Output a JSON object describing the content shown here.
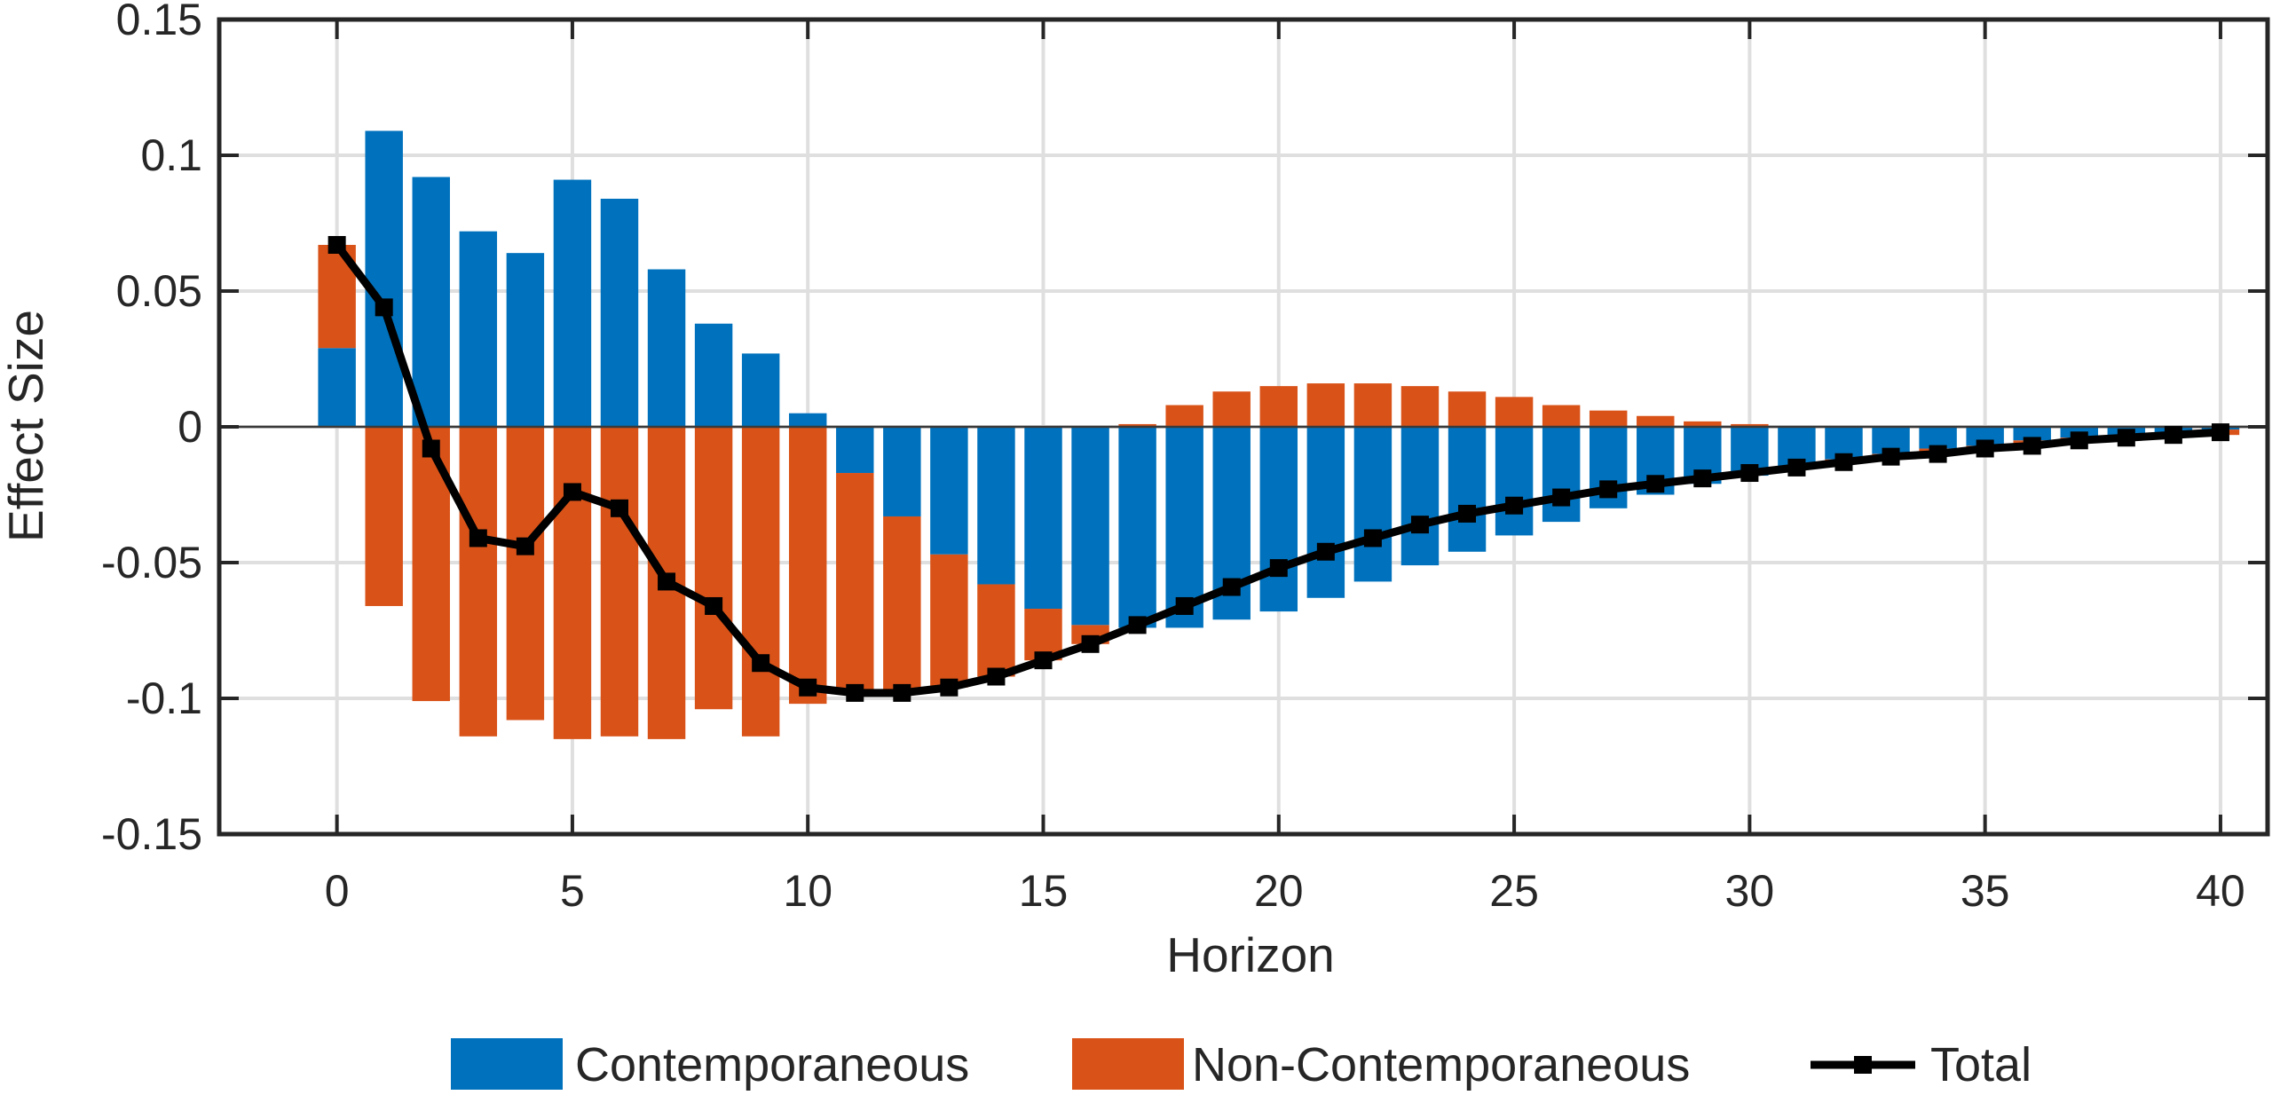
{
  "chart_data": {
    "type": "bar",
    "stacked": true,
    "xlabel": "Horizon",
    "ylabel": "Effect Size",
    "title": "",
    "xlim": [
      -2.5,
      41
    ],
    "ylim": [
      -0.15,
      0.15
    ],
    "xticks": [
      0,
      5,
      10,
      15,
      20,
      25,
      30,
      35,
      40
    ],
    "xtick_labels": [
      "0",
      "5",
      "10",
      "15",
      "20",
      "25",
      "30",
      "35",
      "40"
    ],
    "yticks": [
      -0.15,
      -0.1,
      -0.05,
      0,
      0.05,
      0.1,
      0.15
    ],
    "ytick_labels": [
      "-0.15",
      "-0.1",
      "-0.05",
      "0",
      "0.05",
      "0.1",
      "0.15"
    ],
    "grid": true,
    "legend_position": "bottom-outside",
    "x": [
      0,
      1,
      2,
      3,
      4,
      5,
      6,
      7,
      8,
      9,
      10,
      11,
      12,
      13,
      14,
      15,
      16,
      17,
      18,
      19,
      20,
      21,
      22,
      23,
      24,
      25,
      26,
      27,
      28,
      29,
      30,
      31,
      32,
      33,
      34,
      35,
      36,
      37,
      38,
      39,
      40
    ],
    "series": [
      {
        "name": "Contemporaneous",
        "kind": "bar",
        "color": "#0072BD",
        "values": [
          0.029,
          0.109,
          0.092,
          0.072,
          0.064,
          0.091,
          0.084,
          0.058,
          0.038,
          0.027,
          0.005,
          -0.017,
          -0.033,
          -0.047,
          -0.058,
          -0.067,
          -0.073,
          -0.074,
          -0.074,
          -0.071,
          -0.068,
          -0.063,
          -0.057,
          -0.051,
          -0.046,
          -0.04,
          -0.035,
          -0.03,
          -0.025,
          -0.021,
          -0.018,
          -0.015,
          -0.012,
          -0.01,
          -0.008,
          -0.007,
          -0.005,
          -0.004,
          -0.003,
          -0.002,
          -0.001
        ]
      },
      {
        "name": "Non-Contemporaneous",
        "kind": "bar",
        "color": "#D95319",
        "values": [
          0.038,
          -0.066,
          -0.101,
          -0.114,
          -0.108,
          -0.115,
          -0.114,
          -0.115,
          -0.104,
          -0.114,
          -0.102,
          -0.081,
          -0.065,
          -0.049,
          -0.034,
          -0.019,
          -0.007,
          0.001,
          0.008,
          0.013,
          0.015,
          0.016,
          0.016,
          0.015,
          0.013,
          0.011,
          0.008,
          0.006,
          0.004,
          0.002,
          0.001,
          0.0,
          -0.001,
          -0.001,
          -0.001,
          -0.001,
          -0.002,
          -0.002,
          -0.002,
          -0.002,
          -0.002
        ]
      },
      {
        "name": "Total",
        "kind": "line",
        "color": "#000000",
        "values": [
          0.067,
          0.044,
          -0.008,
          -0.041,
          -0.044,
          -0.024,
          -0.03,
          -0.057,
          -0.066,
          -0.087,
          -0.096,
          -0.098,
          -0.098,
          -0.096,
          -0.092,
          -0.086,
          -0.08,
          -0.073,
          -0.066,
          -0.059,
          -0.052,
          -0.046,
          -0.041,
          -0.036,
          -0.032,
          -0.029,
          -0.026,
          -0.023,
          -0.021,
          -0.019,
          -0.017,
          -0.015,
          -0.013,
          -0.011,
          -0.01,
          -0.008,
          -0.007,
          -0.005,
          -0.004,
          -0.003,
          -0.002
        ]
      }
    ]
  }
}
